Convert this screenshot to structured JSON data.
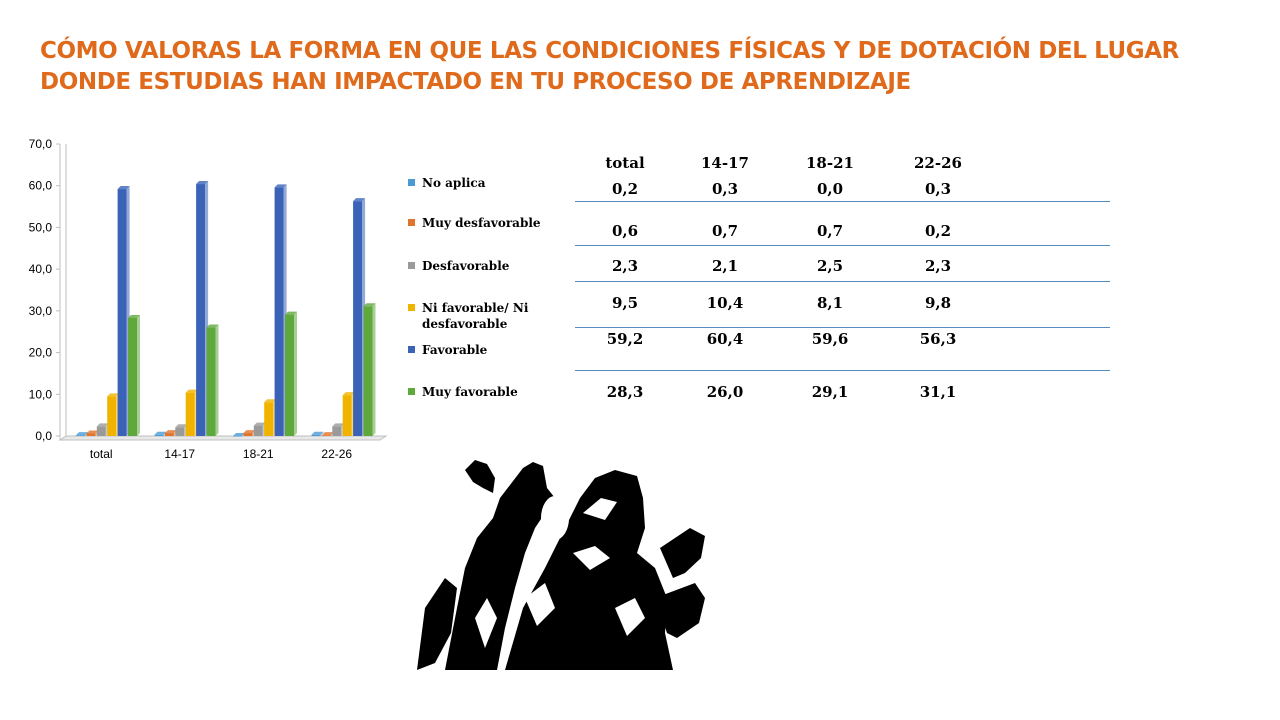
{
  "slide": {
    "title_line1": "CÓMO VALORAS LA FORMA EN QUE LAS CONDICIONES FÍSICAS Y DE DOTACIÓN DEL LUGAR",
    "title_line2": "DONDE ESTUDIAS HAN IMPACTADO EN TU PROCESO DE APRENDIZAJE",
    "title_color": "#e06a1c"
  },
  "chart_data": {
    "type": "bar",
    "categories": [
      "total",
      "14-17",
      "18-21",
      "22-26"
    ],
    "ylim": [
      0,
      70
    ],
    "yticks": [
      "0,0",
      "10,0",
      "20,0",
      "30,0",
      "40,0",
      "50,0",
      "60,0",
      "70,0"
    ],
    "ytick_values": [
      0,
      10,
      20,
      30,
      40,
      50,
      60,
      70
    ],
    "series": [
      {
        "name": "No aplica",
        "color": "#4a9bd5",
        "values": [
          0.2,
          0.3,
          0.0,
          0.3
        ],
        "labels": [
          "0,2",
          "0,3",
          "0,0",
          "0,3"
        ]
      },
      {
        "name": "Muy desfavorable",
        "color": "#e0742c",
        "values": [
          0.6,
          0.7,
          0.7,
          0.2
        ],
        "labels": [
          "0,6",
          "0,7",
          "0,7",
          "0,2"
        ]
      },
      {
        "name": "Desfavorable",
        "color": "#9a9a9a",
        "values": [
          2.3,
          2.1,
          2.5,
          2.3
        ],
        "labels": [
          "2,3",
          "2,1",
          "2,5",
          "2,3"
        ]
      },
      {
        "name": "Ni favorable/ Ni desfavorable",
        "color": "#f0b400",
        "values": [
          9.5,
          10.4,
          8.1,
          9.8
        ],
        "labels": [
          "9,5",
          "10,4",
          "8,1",
          "9,8"
        ]
      },
      {
        "name": "Favorable",
        "color": "#3a63b8",
        "values": [
          59.2,
          60.4,
          59.6,
          56.3
        ],
        "labels": [
          "59,2",
          "60,4",
          "59,6",
          "56,3"
        ]
      },
      {
        "name": "Muy favorable",
        "color": "#5fa83c",
        "values": [
          28.3,
          26.0,
          29.1,
          31.1
        ],
        "labels": [
          "28,3",
          "26,0",
          "29,1",
          "31,1"
        ]
      }
    ],
    "grid": false,
    "legend": "table-left",
    "data_table": true
  },
  "illustration": {
    "name": "screaming-person-silhouette"
  }
}
